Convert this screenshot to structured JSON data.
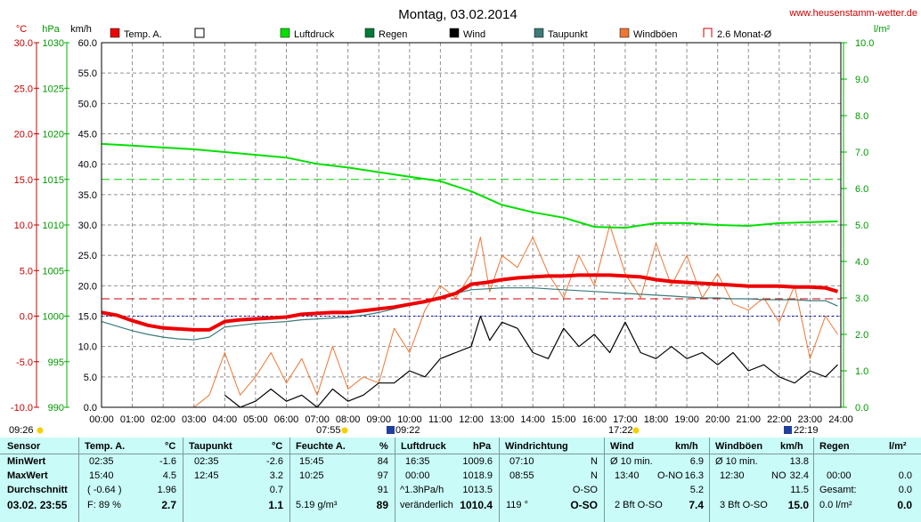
{
  "header": {
    "title": "Montag, 03.02.2014",
    "website": "www.heusenstamm-wetter.de"
  },
  "axes": {
    "temp_unit": "°C",
    "press_unit": "hPa",
    "speed_unit": "km/h",
    "rain_unit": "l/m²",
    "temp_ticks": [
      "30.0",
      "25.0",
      "20.0",
      "15.0",
      "10.0",
      "5.0",
      "0.0",
      "-5.0",
      "-10.0"
    ],
    "press_ticks": [
      "1030",
      "1025",
      "1020",
      "1015",
      "1010",
      "1005",
      "1000",
      "995",
      "990"
    ],
    "speed_ticks": [
      "60.0",
      "55.0",
      "50.0",
      "45.0",
      "40.0",
      "35.0",
      "30.0",
      "25.0",
      "20.0",
      "15.0",
      "10.0",
      "5.0",
      "0.0"
    ],
    "rain_ticks": [
      "10.0",
      "9.0",
      "8.0",
      "7.0",
      "6.0",
      "5.0",
      "4.0",
      "3.0",
      "2.0",
      "1.0",
      "0.0"
    ],
    "time_ticks": [
      "00:00",
      "01:00",
      "02:00",
      "03:00",
      "04:00",
      "05:00",
      "06:00",
      "07:00",
      "08:00",
      "09:00",
      "10:00",
      "11:00",
      "12:00",
      "13:00",
      "14:00",
      "15:00",
      "16:00",
      "17:00",
      "18:00",
      "19:00",
      "20:00",
      "21:00",
      "22:00",
      "23:00",
      "24:00"
    ]
  },
  "legend": [
    {
      "label": "Temp. A.",
      "color": "#ee0000",
      "style": "filled"
    },
    {
      "label": "",
      "color": "#000000",
      "style": "hollow"
    },
    {
      "label": "Luftdruck",
      "color": "#00e000",
      "style": "filled"
    },
    {
      "label": "Regen",
      "color": "#007a3a",
      "style": "filled"
    },
    {
      "label": "Wind",
      "color": "#000000",
      "style": "filled"
    },
    {
      "label": "Taupunkt",
      "color": "#3c7a7a",
      "style": "filled"
    },
    {
      "label": "Windböen",
      "color": "#ee7733",
      "style": "filled"
    },
    {
      "label": "2.6 Monat-Ø",
      "color": "#cc0000",
      "style": "bracket"
    }
  ],
  "events": {
    "sunrise": "07:55",
    "sunset": "17:22",
    "moonrise": "09:22",
    "moonset": "22:19",
    "left_time": "09:26"
  },
  "chart_data": {
    "type": "line",
    "x_unit": "hour of day",
    "xlim": [
      0,
      24
    ],
    "monthly_avg_temp": 1.9,
    "pressure_ref": 1015,
    "temp_ref": 0,
    "series": [
      {
        "name": "Temp. A.",
        "axis": "temp",
        "color": "#ee0000",
        "x": [
          0,
          0.5,
          1,
          1.5,
          2,
          2.5,
          3,
          3.5,
          4,
          4.5,
          5,
          5.5,
          6,
          6.5,
          7,
          7.5,
          8,
          8.5,
          9,
          9.5,
          10,
          10.5,
          11,
          11.5,
          12,
          12.5,
          13,
          13.5,
          14,
          14.5,
          15,
          15.5,
          16,
          16.5,
          17,
          17.5,
          18,
          18.5,
          19,
          19.5,
          20,
          20.5,
          21,
          21.5,
          22,
          22.5,
          23,
          23.5,
          23.9
        ],
        "y": [
          0.4,
          0.1,
          -0.5,
          -1.0,
          -1.3,
          -1.4,
          -1.5,
          -1.5,
          -0.6,
          -0.4,
          -0.3,
          -0.2,
          -0.1,
          0.2,
          0.3,
          0.4,
          0.4,
          0.6,
          0.8,
          1.0,
          1.3,
          1.6,
          2.0,
          2.5,
          3.5,
          3.7,
          4.0,
          4.2,
          4.3,
          4.4,
          4.4,
          4.5,
          4.5,
          4.5,
          4.4,
          4.3,
          4.0,
          3.8,
          3.7,
          3.6,
          3.5,
          3.4,
          3.3,
          3.3,
          3.3,
          3.2,
          3.2,
          3.1,
          2.7
        ]
      },
      {
        "name": "Taupunkt",
        "axis": "temp",
        "color": "#3c7a7a",
        "x": [
          0,
          0.5,
          1,
          1.5,
          2,
          2.5,
          3,
          3.5,
          4,
          4.5,
          5,
          5.5,
          6,
          6.5,
          7,
          7.5,
          8,
          8.5,
          9,
          9.5,
          10,
          10.5,
          11,
          11.5,
          12,
          12.5,
          13,
          13.5,
          14,
          14.5,
          15,
          15.5,
          16,
          16.5,
          17,
          17.5,
          18,
          18.5,
          19,
          19.5,
          20,
          20.5,
          21,
          21.5,
          22,
          22.5,
          23,
          23.5,
          23.9
        ],
        "y": [
          -0.6,
          -1.1,
          -1.6,
          -2.0,
          -2.3,
          -2.5,
          -2.6,
          -2.3,
          -1.2,
          -1.0,
          -0.8,
          -0.7,
          -0.6,
          -0.4,
          -0.3,
          -0.2,
          -0.1,
          0.1,
          0.4,
          0.8,
          1.2,
          1.6,
          2.0,
          2.5,
          2.9,
          3.0,
          3.1,
          3.1,
          3.1,
          3.0,
          2.9,
          2.8,
          2.7,
          2.6,
          2.5,
          2.4,
          2.3,
          2.2,
          2.1,
          2.0,
          2.0,
          1.9,
          1.9,
          1.8,
          1.8,
          1.8,
          1.7,
          1.7,
          1.1
        ]
      },
      {
        "name": "Luftdruck",
        "axis": "pressure",
        "color": "#00e000",
        "x": [
          0,
          1,
          2,
          3,
          4,
          5,
          6,
          7,
          8,
          9,
          10,
          11,
          12,
          13,
          14,
          15,
          16,
          17,
          18,
          19,
          20,
          21,
          22,
          23,
          23.9
        ],
        "y": [
          1018.9,
          1018.7,
          1018.5,
          1018.3,
          1018.0,
          1017.7,
          1017.4,
          1016.7,
          1016.3,
          1015.8,
          1015.3,
          1014.8,
          1013.7,
          1012.2,
          1011.4,
          1010.8,
          1009.8,
          1009.7,
          1010.2,
          1010.2,
          1010.0,
          1009.9,
          1010.2,
          1010.3,
          1010.4
        ]
      },
      {
        "name": "Windböen",
        "axis": "speed",
        "color": "#ee7733",
        "x": [
          3,
          3.5,
          4,
          4.5,
          5,
          5.5,
          6,
          6.5,
          7,
          7.5,
          8,
          8.5,
          9,
          9.5,
          10,
          10.5,
          11,
          11.5,
          12,
          12.3,
          12.6,
          13,
          13.5,
          14,
          14.5,
          15,
          15.5,
          16,
          16.5,
          17,
          17.5,
          18,
          18.5,
          19,
          19.5,
          20,
          20.5,
          21,
          21.5,
          22,
          22.5,
          23,
          23.5,
          23.9
        ],
        "y": [
          0,
          2,
          9,
          2,
          5,
          9,
          4,
          8,
          2,
          10,
          3,
          5,
          4,
          13,
          9,
          16,
          20,
          18,
          22,
          28,
          19,
          25,
          23,
          28,
          22,
          18,
          25,
          20,
          30,
          22,
          18,
          27,
          20,
          25,
          18,
          22,
          17,
          16,
          18,
          14,
          20,
          8,
          15,
          12
        ]
      },
      {
        "name": "Wind",
        "axis": "speed",
        "color": "#000000",
        "x": [
          4,
          4.5,
          5,
          5.5,
          6,
          6.5,
          7,
          7.5,
          8,
          8.5,
          9,
          9.5,
          10,
          10.5,
          11,
          11.5,
          12,
          12.3,
          12.6,
          13,
          13.5,
          14,
          14.5,
          15,
          15.5,
          16,
          16.5,
          17,
          17.5,
          18,
          18.5,
          19,
          19.5,
          20,
          20.5,
          21,
          21.5,
          22,
          22.5,
          23,
          23.5,
          23.9
        ],
        "y": [
          2,
          0,
          1,
          3,
          1,
          2,
          0,
          3,
          1,
          2,
          4,
          4,
          6,
          5,
          8,
          9,
          10,
          15,
          11,
          14,
          13,
          9,
          8,
          13,
          10,
          12,
          9,
          14,
          9,
          8,
          10,
          8,
          9,
          7,
          9,
          6,
          7,
          5,
          4,
          6,
          5,
          7
        ]
      }
    ]
  },
  "stats": {
    "headers": {
      "sensor": "Sensor",
      "temp": "Temp. A.",
      "temp_u": "°C",
      "dew": "Taupunkt",
      "dew_u": "°C",
      "hum": "Feuchte A.",
      "hum_u": "%",
      "press": "Luftdruck",
      "press_u": "hPa",
      "dir": "Windrichtung",
      "wind": "Wind",
      "wind_u": "km/h",
      "gust": "Windböen",
      "gust_u": "km/h",
      "rain": "Regen",
      "rain_u": "l/m²"
    },
    "row_labels": [
      "MinWert",
      "MaxWert",
      "Durchschnitt"
    ],
    "footer_date": "03.02. 23:55",
    "temp": {
      "min_t": "02:35",
      "min": "-1.6",
      "max_t": "15:40",
      "max": "4.5",
      "avg_note": "( -0.64 )",
      "avg": "1.96",
      "ft_note": "F: 89 %",
      "current": "2.7"
    },
    "dew": {
      "min_t": "02:35",
      "min": "-2.6",
      "max_t": "12:45",
      "max": "3.2",
      "avg": "0.7",
      "current": "1.1"
    },
    "hum": {
      "min_t": "15:45",
      "min": "84",
      "max_t": "10:25",
      "max": "97",
      "avg": "91",
      "abs": "5.19 g/m³",
      "current": "89"
    },
    "press": {
      "min_t": "16:35",
      "min": "1009.6",
      "max_t": "00:00",
      "max": "1018.9",
      "avg_note": "^1.3hPa/h",
      "avg": "1013.5",
      "trend": "veränderlich",
      "current": "1010.4"
    },
    "dir": {
      "min_t": "07:10",
      "min": "N",
      "max_t": "08:55",
      "max": "N",
      "avg": "O-SO",
      "cur_deg": "119 °",
      "current": "O-SO"
    },
    "wind": {
      "min_t": "Ø 10 min.",
      "min": "6.9",
      "max_t": "13:40",
      "max_dir": "O-NO",
      "max": "16.3",
      "avg": "5.2",
      "bft": "2 Bft O-SO",
      "current": "7.4"
    },
    "gust": {
      "min_t": "Ø 10 min.",
      "min": "13.8",
      "max_t": "12:30",
      "max_dir": "NO",
      "max": "32.4",
      "avg": "11.5",
      "bft": "3 Bft O-SO",
      "current": "15.0"
    },
    "rain": {
      "max_t": "00:00",
      "max": "0.0",
      "total_label": "Gesamt:",
      "total": "0.0",
      "cur_label": "0.0 l/m²",
      "current": "0.0"
    }
  }
}
